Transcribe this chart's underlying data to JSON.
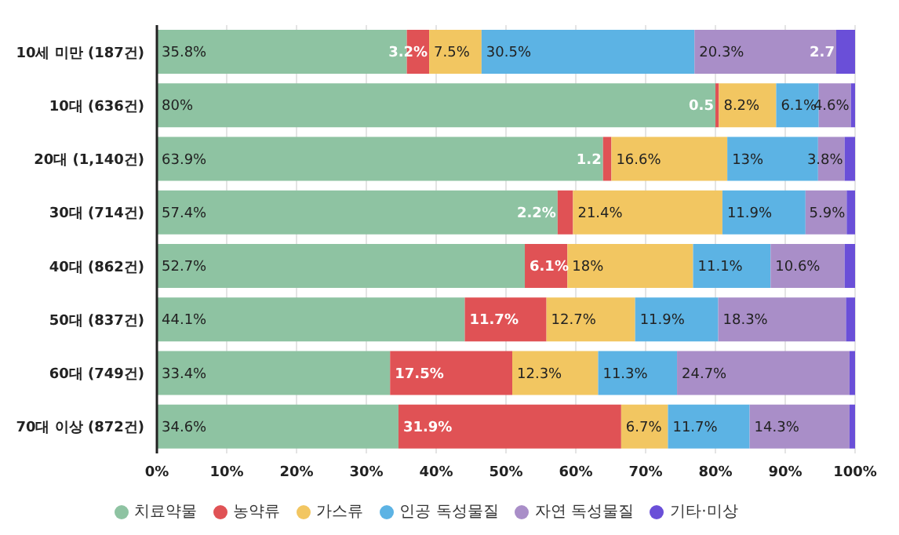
{
  "chart_data": {
    "type": "bar",
    "orientation": "horizontal",
    "stacked": true,
    "categories": [
      "10세 미만 (187건)",
      "10대 (636건)",
      "20대 (1,140건)",
      "30대 (714건)",
      "40대 (862건)",
      "50대 (837건)",
      "60대 (749건)",
      "70대 이상 (872건)"
    ],
    "series": [
      {
        "name": "치료약물",
        "color": "#8ec3a2",
        "values": [
          35.8,
          80,
          63.9,
          57.4,
          52.7,
          44.1,
          33.4,
          34.6
        ],
        "value_labels": [
          "35.8%",
          "80%",
          "63.9%",
          "57.4%",
          "52.7%",
          "44.1%",
          "33.4%",
          "34.6%"
        ]
      },
      {
        "name": "농약류",
        "color": "#e05255",
        "values": [
          3.2,
          0.5,
          1.2,
          2.2,
          6.1,
          11.7,
          17.5,
          31.9
        ],
        "value_labels": [
          "3.2%",
          "0.5",
          "1.2",
          "2.2%",
          "6.1%",
          "11.7%",
          "17.5%",
          "31.9%"
        ]
      },
      {
        "name": "가스류",
        "color": "#f2c661",
        "values": [
          7.5,
          8.2,
          16.6,
          21.4,
          18,
          12.7,
          12.3,
          6.7
        ],
        "value_labels": [
          "7.5%",
          "8.2%",
          "16.6%",
          "21.4%",
          "18%",
          "12.7%",
          "12.3%",
          "6.7%"
        ]
      },
      {
        "name": "인공 독성물질",
        "color": "#5cb3e4",
        "values": [
          30.5,
          6.1,
          13,
          11.9,
          11.1,
          11.9,
          11.3,
          11.7
        ],
        "value_labels": [
          "30.5%",
          "6.1%",
          "13%",
          "11.9%",
          "11.1%",
          "11.9%",
          "11.3%",
          "11.7%"
        ]
      },
      {
        "name": "자연 독성물질",
        "color": "#a98ec8",
        "values": [
          20.3,
          4.6,
          3.8,
          5.9,
          10.6,
          18.3,
          24.7,
          14.3
        ],
        "value_labels": [
          "20.3%",
          "4.6%",
          "3.8%",
          "5.9%",
          "10.6%",
          "18.3%",
          "24.7%",
          "14.3%"
        ]
      },
      {
        "name": "기타·미상",
        "color": "#6a4fd8",
        "values": [
          2.7,
          0.6,
          1.5,
          1.2,
          1.5,
          1.3,
          0.8,
          0.8
        ],
        "value_labels": [
          "2.7",
          null,
          null,
          null,
          null,
          null,
          null,
          null
        ]
      }
    ],
    "xlim": [
      0,
      100
    ],
    "xticks": [
      {
        "value": 0,
        "label": "0%"
      },
      {
        "value": 10,
        "label": "10%"
      },
      {
        "value": 20,
        "label": "20%"
      },
      {
        "value": 30,
        "label": "30%"
      },
      {
        "value": 40,
        "label": "40%"
      },
      {
        "value": 50,
        "label": "50%"
      },
      {
        "value": 60,
        "label": "60%"
      },
      {
        "value": 70,
        "label": "70%"
      },
      {
        "value": 80,
        "label": "80%"
      },
      {
        "value": 90,
        "label": "90%"
      },
      {
        "value": 100,
        "label": "100%"
      }
    ],
    "grid": "x",
    "legend": "bottom"
  }
}
